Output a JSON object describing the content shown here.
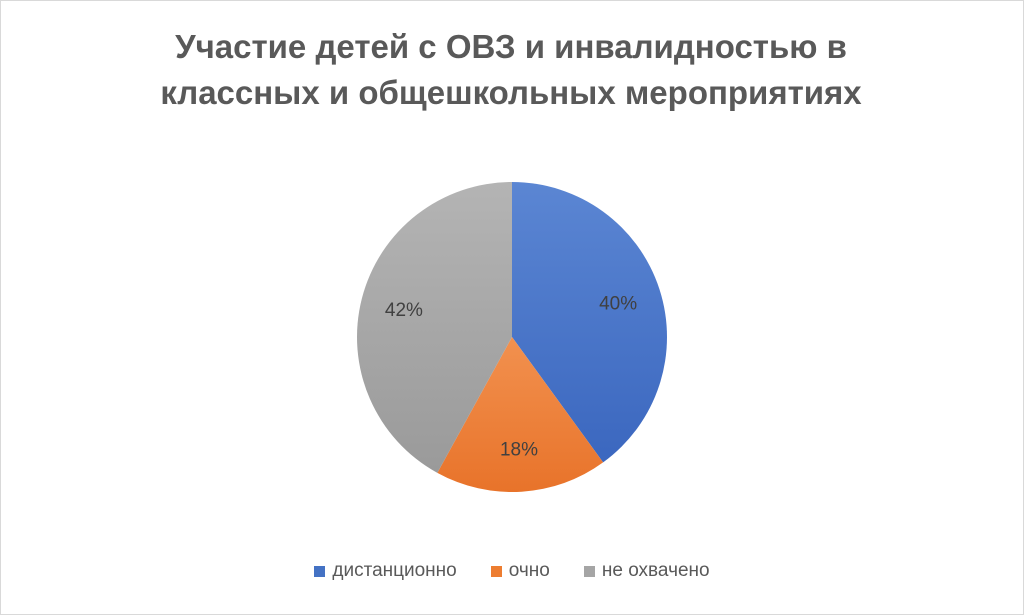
{
  "chart_data": {
    "type": "pie",
    "title": [
      "Участие детей с ОВЗ и инвалидностью в",
      "классных  и общешкольных мероприятиях"
    ],
    "categories": [
      "дистанционно",
      "очно",
      "не охвачено"
    ],
    "values": [
      40,
      18,
      42
    ],
    "labels": [
      "40%",
      "18%",
      "42%"
    ],
    "colors": [
      "#4472c4",
      "#ed7d31",
      "#a5a5a5"
    ],
    "legend_position": "bottom"
  }
}
